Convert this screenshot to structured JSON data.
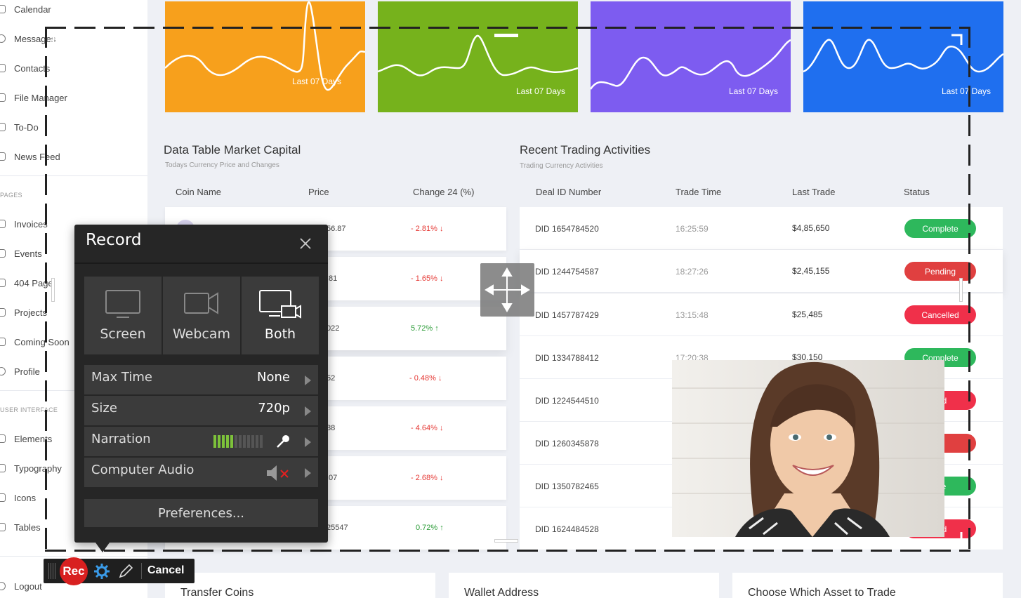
{
  "sidebar": {
    "items": [
      {
        "label": "Calendar"
      },
      {
        "label": "Messages"
      },
      {
        "label": "Contacts"
      },
      {
        "label": "File Manager"
      },
      {
        "label": "To-Do"
      },
      {
        "label": "News Feed"
      },
      {
        "label": "Invoices"
      },
      {
        "label": "Events"
      },
      {
        "label": "404 Page"
      },
      {
        "label": "Projects"
      },
      {
        "label": "Coming Soon"
      },
      {
        "label": "Profile"
      },
      {
        "label": "Elements"
      },
      {
        "label": "Typography"
      },
      {
        "label": "Icons"
      },
      {
        "label": "Tables"
      },
      {
        "label": "Logout"
      }
    ],
    "sections": {
      "pages": "PAGES",
      "ui": "USER INTERFACE"
    }
  },
  "cards": [
    {
      "label": "Last 07 Days",
      "color": "#f7a01c"
    },
    {
      "label": "Last 07 Days",
      "color": "#76b21c"
    },
    {
      "label": "Last 07 Days",
      "color": "#7d5cf0"
    },
    {
      "label": "Last 07 Days",
      "color": "#1f6fef"
    }
  ],
  "market": {
    "title": "Data Table Market Capital",
    "subtitle": "Todays Currency Price and Changes",
    "headers": {
      "coin": "Coin Name",
      "price": "Price",
      "change": "Change 24 (%)"
    },
    "rows": [
      {
        "price": "56.87",
        "change": "- 2.81%",
        "dir": "down"
      },
      {
        "price": ".81",
        "change": "- 1.65%",
        "dir": "down"
      },
      {
        "price": "022",
        "change": "5.72%",
        "dir": "up"
      },
      {
        "price": "52",
        "change": "- 0.48%",
        "dir": "down"
      },
      {
        "price": "88",
        "change": "- 4.64%",
        "dir": "down"
      },
      {
        "price": ".07",
        "change": "- 2.68%",
        "dir": "down"
      },
      {
        "price": "25547",
        "change": "0.72%",
        "dir": "up"
      }
    ]
  },
  "trading": {
    "title": "Recent Trading Activities",
    "subtitle": "Trading Currency Activities",
    "headers": {
      "id": "Deal ID Number",
      "time": "Trade Time",
      "last": "Last Trade",
      "status": "Status"
    },
    "rows": [
      {
        "id": "DID 1654784520",
        "time": "16:25:59",
        "last": "$4,85,650",
        "status": "Complete",
        "color": "#2eb85c"
      },
      {
        "id": "DID 1244754587",
        "time": "18:27:26",
        "last": "$2,45,155",
        "status": "Pending",
        "color": "#e04040"
      },
      {
        "id": "DID 1457787429",
        "time": "13:15:48",
        "last": "$25,485",
        "status": "Cancelled",
        "color": "#f0304a"
      },
      {
        "id": "DID 1334788412",
        "time": "17:20:38",
        "last": "$30,150",
        "status": "Complete",
        "color": "#2eb85c"
      },
      {
        "id": "DID 1224544510",
        "time": "",
        "last": "",
        "status": "lled",
        "color": "#f0304a"
      },
      {
        "id": "DID 1260345878",
        "time": "",
        "last": "",
        "status": "ng",
        "color": "#e04040"
      },
      {
        "id": "DID 1350782465",
        "time": "",
        "last": "",
        "status": "ete",
        "color": "#2eb85c"
      },
      {
        "id": "DID 1624484528",
        "time": "",
        "last": "",
        "status": "lled",
        "color": "#f0304a"
      }
    ]
  },
  "bottom_cards": [
    "Transfer Coins",
    "Wallet Address",
    "Choose Which Asset to Trade"
  ],
  "record_panel": {
    "title": "Record",
    "sources": [
      {
        "label": "Screen",
        "icon": "monitor-icon"
      },
      {
        "label": "Webcam",
        "icon": "camera-icon"
      },
      {
        "label": "Both",
        "icon": "monitor-camera-icon",
        "active": true
      }
    ],
    "options": {
      "max_time": {
        "label": "Max Time",
        "value": "None"
      },
      "size": {
        "label": "Size",
        "value": "720p"
      },
      "narration": {
        "label": "Narration",
        "level": 0.4
      },
      "computer_audio": {
        "label": "Computer Audio",
        "muted": true
      }
    },
    "preferences": "Preferences..."
  },
  "toolbar": {
    "rec": "Rec",
    "cancel": "Cancel"
  }
}
